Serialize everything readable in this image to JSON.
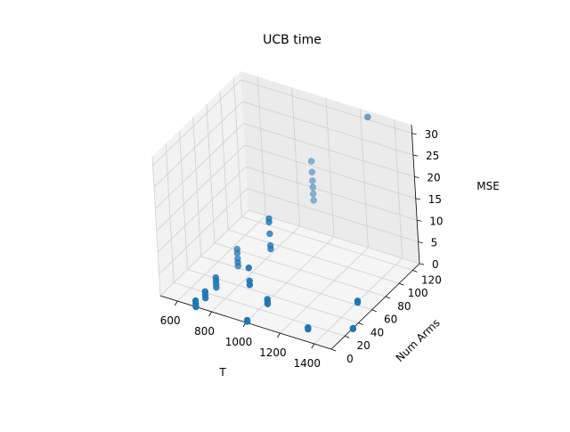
{
  "chart_data": {
    "type": "scatter",
    "projection": "3d",
    "title": "UCB time",
    "xlabel": "T",
    "ylabel": "Num Arms",
    "zlabel": "MSE",
    "xlim": [
      500,
      1500
    ],
    "ylim": [
      0,
      130
    ],
    "zlim": [
      0,
      32
    ],
    "xticks": [
      "600",
      "800",
      "1000",
      "1200",
      "1400"
    ],
    "yticks": [
      "0",
      "20",
      "40",
      "60",
      "80",
      "100",
      "120"
    ],
    "zticks": [
      "0",
      "5",
      "10",
      "15",
      "20",
      "25",
      "30"
    ],
    "grid": true,
    "points": [
      {
        "x": 1250,
        "y": 128,
        "z": 31
      },
      {
        "x": 900,
        "y": 128,
        "z": 16.5
      },
      {
        "x": 900,
        "y": 128,
        "z": 14
      },
      {
        "x": 900,
        "y": 128,
        "z": 12
      },
      {
        "x": 900,
        "y": 128,
        "z": 10.5
      },
      {
        "x": 900,
        "y": 128,
        "z": 9
      },
      {
        "x": 900,
        "y": 128,
        "z": 7.5
      },
      {
        "x": 900,
        "y": 64,
        "z": 13
      },
      {
        "x": 900,
        "y": 64,
        "z": 12.2
      },
      {
        "x": 900,
        "y": 64,
        "z": 9.5
      },
      {
        "x": 900,
        "y": 64,
        "z": 6.8
      },
      {
        "x": 900,
        "y": 64,
        "z": 6
      },
      {
        "x": 900,
        "y": 32,
        "z": 6.5
      },
      {
        "x": 900,
        "y": 32,
        "z": 3.5
      },
      {
        "x": 900,
        "y": 32,
        "z": 2.6
      },
      {
        "x": 700,
        "y": 64,
        "z": 3.5
      },
      {
        "x": 700,
        "y": 64,
        "z": 2.6
      },
      {
        "x": 700,
        "y": 64,
        "z": 1.3
      },
      {
        "x": 700,
        "y": 64,
        "z": 0.4
      },
      {
        "x": 700,
        "y": 64,
        "z": -0.4
      },
      {
        "x": 700,
        "y": 32,
        "z": 1.8
      },
      {
        "x": 700,
        "y": 32,
        "z": 1.1
      },
      {
        "x": 700,
        "y": 32,
        "z": 0.3
      },
      {
        "x": 700,
        "y": 32,
        "z": -0.5
      },
      {
        "x": 700,
        "y": 16,
        "z": 1
      },
      {
        "x": 700,
        "y": 16,
        "z": 0.2
      },
      {
        "x": 700,
        "y": 16,
        "z": -0.5
      },
      {
        "x": 700,
        "y": 2,
        "z": 1
      },
      {
        "x": 700,
        "y": 2,
        "z": 0.3
      },
      {
        "x": 700,
        "y": 2,
        "z": -0.4
      },
      {
        "x": 1000,
        "y": 32,
        "z": 0.5
      },
      {
        "x": 1000,
        "y": 32,
        "z": -0.1
      },
      {
        "x": 1000,
        "y": 32,
        "z": -0.6
      },
      {
        "x": 1400,
        "y": 64,
        "z": 0.2
      },
      {
        "x": 1400,
        "y": 64,
        "z": -0.2
      },
      {
        "x": 1300,
        "y": 16,
        "z": 0.1
      },
      {
        "x": 1300,
        "y": 16,
        "z": -0.3
      },
      {
        "x": 1000,
        "y": 2,
        "z": 0.2
      },
      {
        "x": 1000,
        "y": 2,
        "z": -0.1
      },
      {
        "x": 1500,
        "y": 32,
        "z": 0
      },
      {
        "x": 1500,
        "y": 32,
        "z": -0.2
      }
    ]
  },
  "colors": {
    "point": "#1f77b4",
    "pane_left": "#f2f2f2",
    "pane_right": "#ebebeb",
    "pane_floor": "#f5f5f5",
    "grid": "#cfcfcf"
  }
}
